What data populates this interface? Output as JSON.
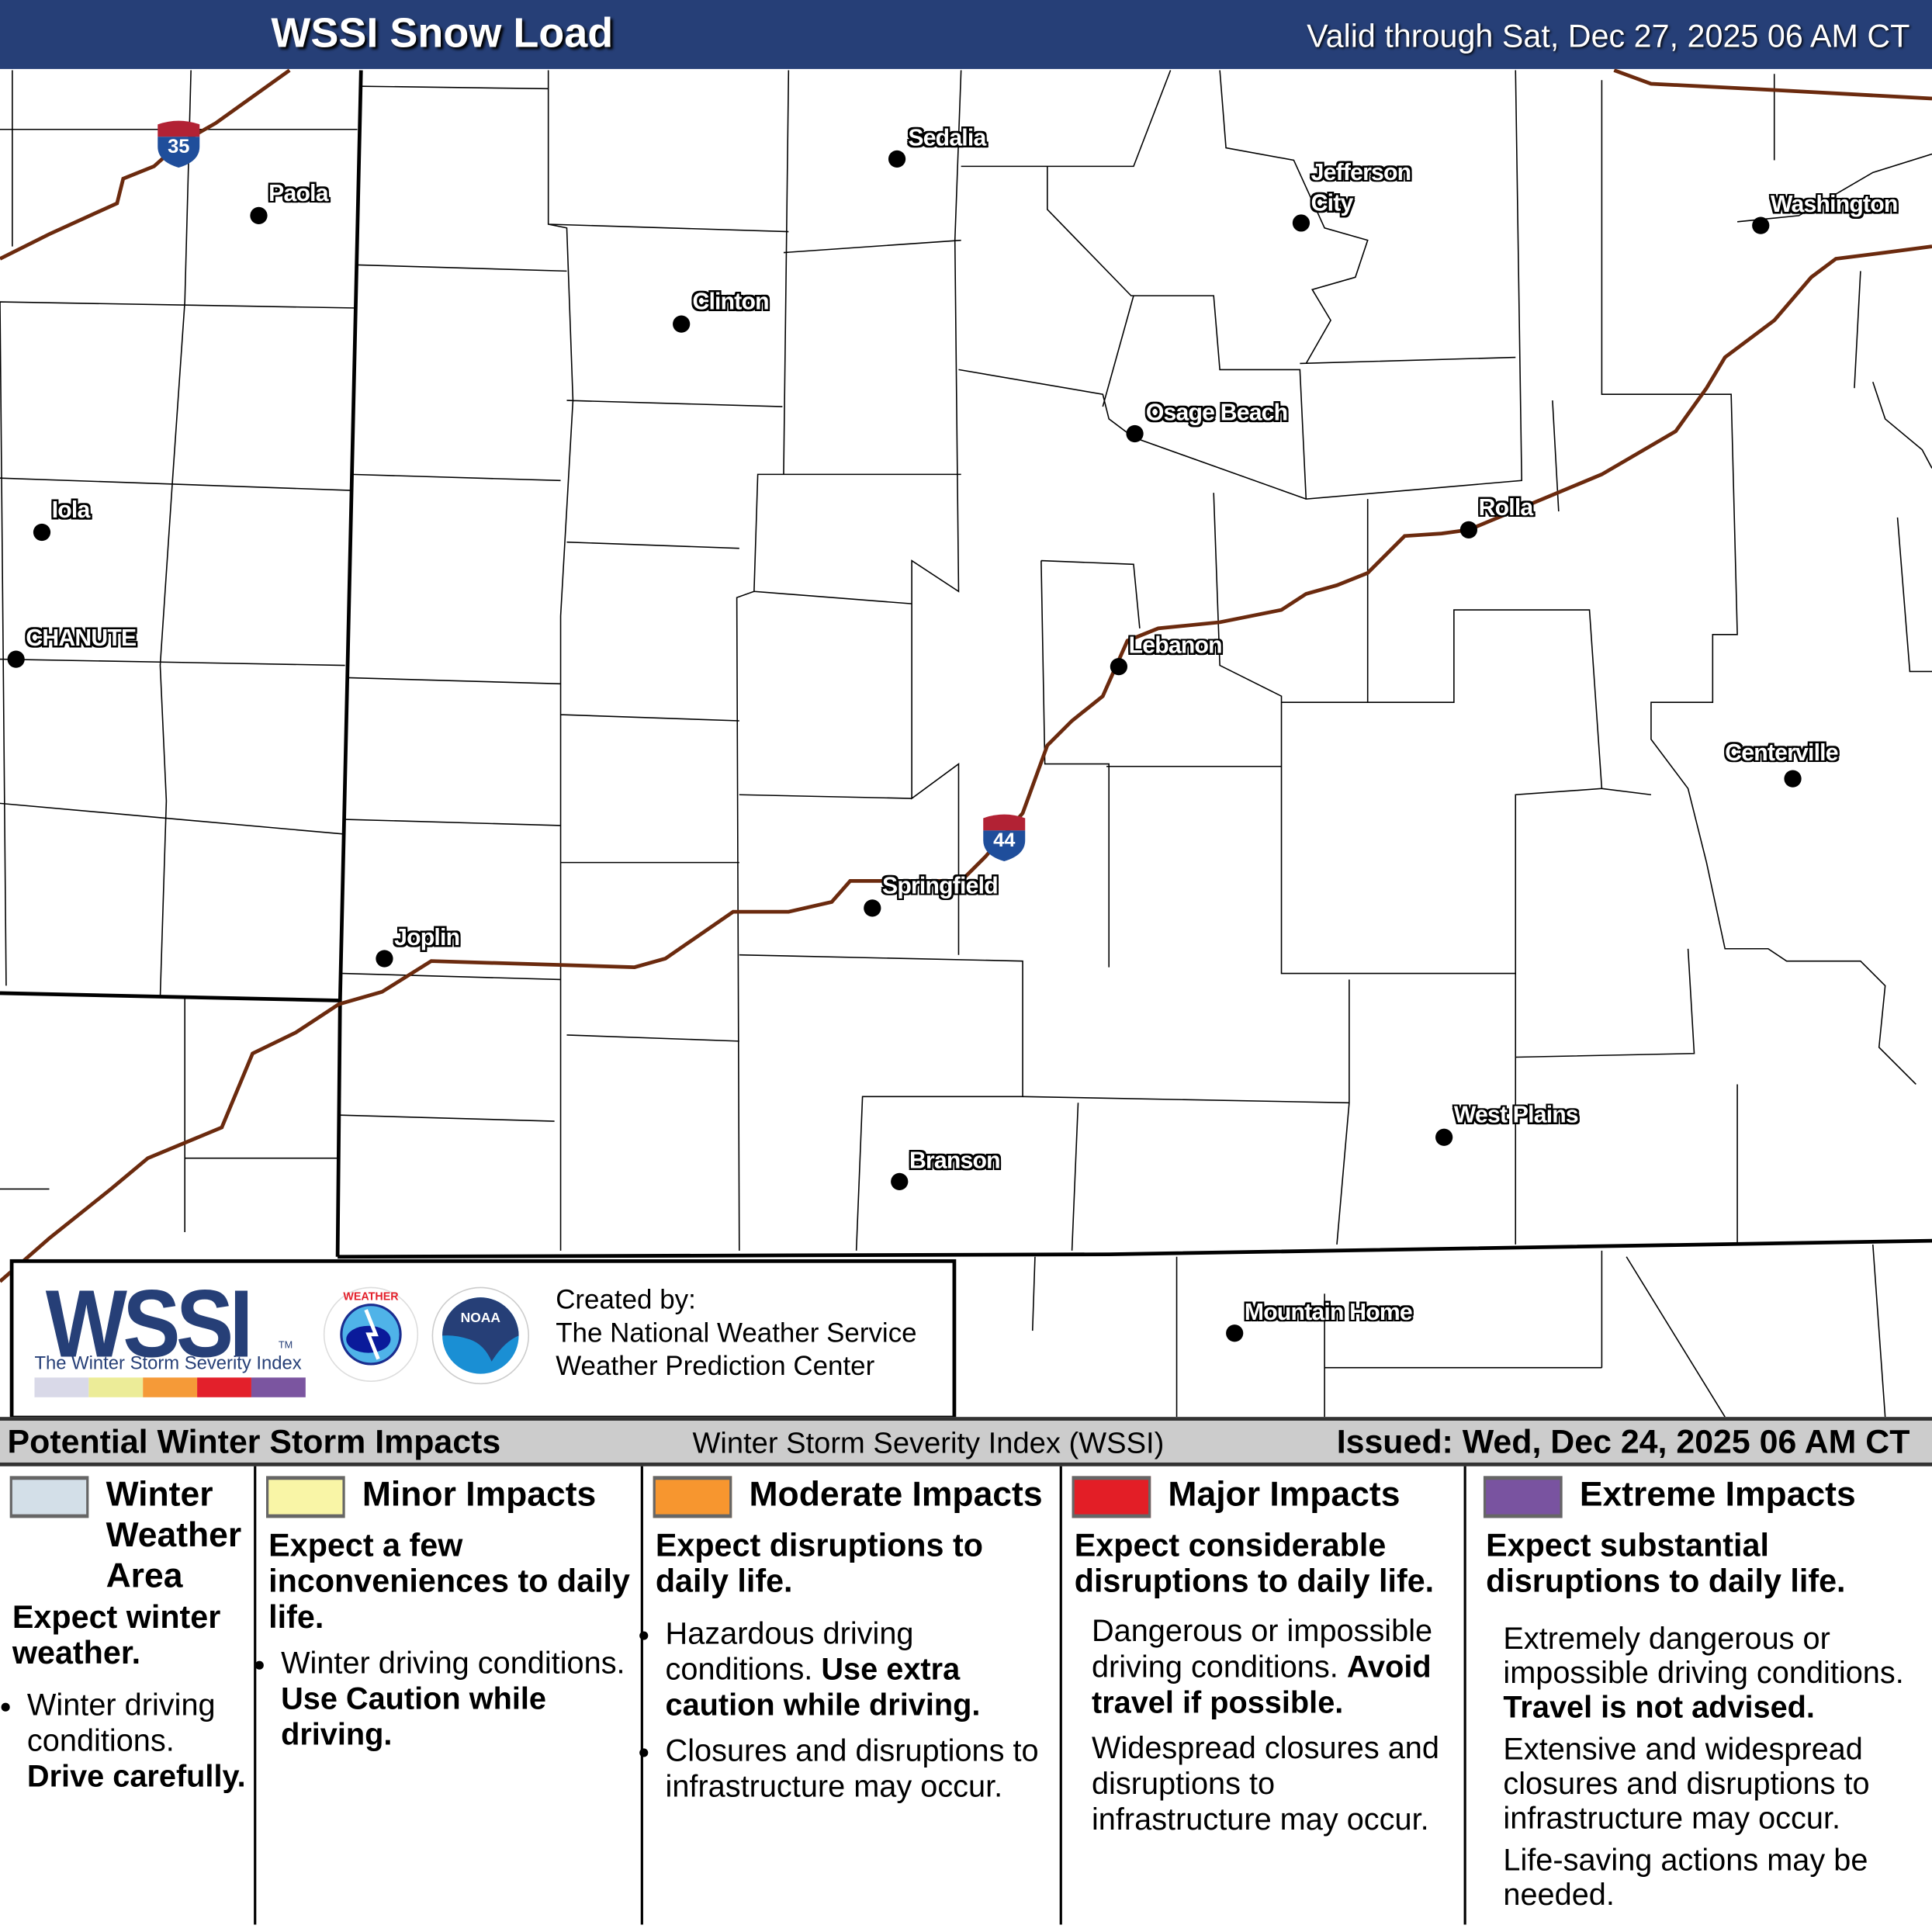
{
  "header": {
    "title": "WSSI Snow Load",
    "valid": "Valid through Sat, Dec 27, 2025 06 AM CT",
    "color": "#263f77"
  },
  "map": {
    "cities": [
      {
        "name": "Sedalia"
      },
      {
        "name": "Paola"
      },
      {
        "name": "Jefferson City"
      },
      {
        "name": "Washington"
      },
      {
        "name": "Clinton"
      },
      {
        "name": "Osage Beach"
      },
      {
        "name": "Iola"
      },
      {
        "name": "Rolla"
      },
      {
        "name": "CHANUTE"
      },
      {
        "name": "Lebanon"
      },
      {
        "name": "Centerville"
      },
      {
        "name": "Springfield"
      },
      {
        "name": "Joplin"
      },
      {
        "name": "West Plains"
      },
      {
        "name": "Branson"
      },
      {
        "name": "Mountain Home"
      }
    ],
    "shields": [
      {
        "number": "35"
      },
      {
        "number": "44"
      }
    ],
    "road_color": "#6b2a0e"
  },
  "logo": {
    "wssi": "WSSI",
    "tm": "TM",
    "subtitle": "The Winter Storm Severity Index",
    "bar_colors": [
      "#d9d9e8",
      "#ecec98",
      "#f59a38",
      "#e3202b",
      "#7b55a0"
    ],
    "created_by": "Created by:",
    "org1": "The National Weather Service",
    "org2": "Weather Prediction Center",
    "nws_icon": "nws-logo",
    "noaa_icon": "noaa-logo"
  },
  "strip": {
    "left": "Potential Winter Storm Impacts",
    "middle": "Winter Storm Severity Index (WSSI)",
    "right": "Issued: Wed, Dec 24, 2025 06 AM CT"
  },
  "legend": [
    {
      "title": "Winter Weather Area",
      "color": "#d3dfe8",
      "lead": "Expect winter weather.",
      "bullet": "Winter driving conditions.",
      "bullet_bold": "Drive carefully."
    },
    {
      "title": "Minor Impacts",
      "color": "#f9f5a6",
      "lead": "Expect a few inconveniences to daily life.",
      "bullet": "Winter driving conditions.",
      "bullet_bold": "Use Caution while driving."
    },
    {
      "title": "Moderate Impacts",
      "color": "#f7962f",
      "lead": "Expect disruptions to daily life.",
      "bullet": "Hazardous driving conditions.",
      "bullet_bold": "Use extra caution while driving.",
      "bullet2": "Closures and disruptions to infrastructure may occur."
    },
    {
      "title": "Major Impacts",
      "color": "#e31e26",
      "lead": "Expect considerable disruptions to daily life.",
      "p1": "Dangerous or impossible driving conditions.",
      "p1_bold": "Avoid travel if possible.",
      "p2": "Widespread closures and disruptions to infrastructure may occur."
    },
    {
      "title": "Extreme Impacts",
      "color": "#7953a0",
      "lead": "Expect substantial disruptions to daily life.",
      "p1": "Extremely dangerous or impossible driving conditions.",
      "p1_bold": "Travel is not advised.",
      "p2": "Extensive and widespread closures and disruptions to infrastructure may occur.",
      "p3": "Life-saving actions may be needed."
    }
  ]
}
